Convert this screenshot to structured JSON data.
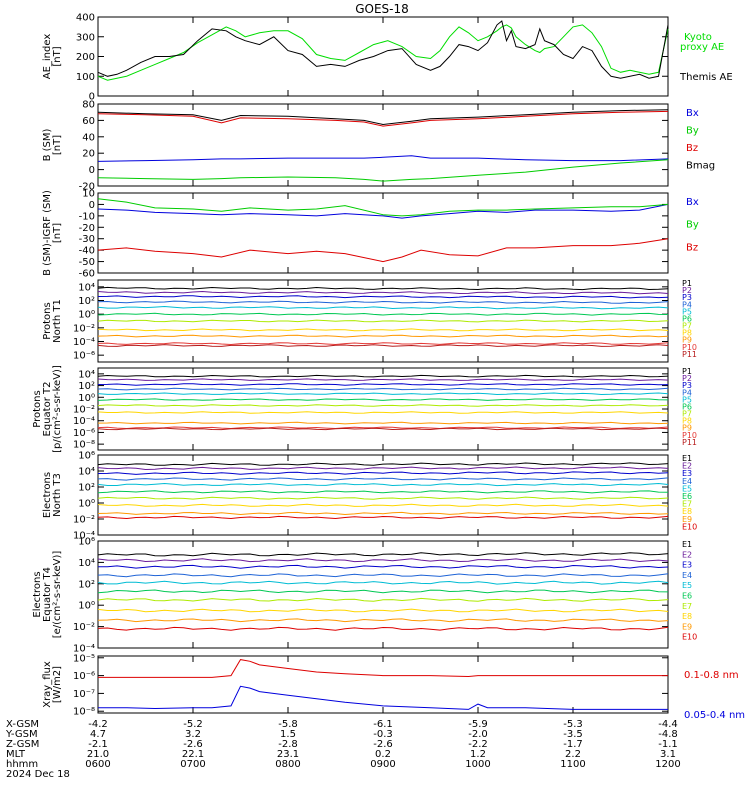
{
  "title": "GOES-18",
  "chart_data": [
    {
      "type": "line",
      "ylabel": "AE_index\n[nT]",
      "scale": "linear",
      "ylim": [
        0,
        400
      ],
      "ytick_labels": [
        "0",
        "100",
        "200",
        "300",
        "400"
      ],
      "ytick_values": [
        0,
        100,
        200,
        300,
        400
      ],
      "x": [
        6.0,
        6.1,
        6.2,
        6.3,
        6.45,
        6.6,
        6.75,
        6.9,
        7.05,
        7.2,
        7.35,
        7.45,
        7.55,
        7.7,
        7.85,
        8.0,
        8.15,
        8.3,
        8.45,
        8.6,
        8.75,
        8.9,
        9.05,
        9.2,
        9.35,
        9.5,
        9.6,
        9.7,
        9.8,
        9.9,
        10.0,
        10.1,
        10.2,
        10.25,
        10.3,
        10.35,
        10.4,
        10.5,
        10.6,
        10.65,
        10.7,
        10.8,
        10.9,
        11.0,
        11.1,
        11.2,
        11.3,
        11.4,
        11.5,
        11.6,
        11.7,
        11.8,
        11.9,
        12.0
      ],
      "series": [
        {
          "name": "Kyoto proxy AE",
          "color": "#00dd00",
          "legend_position": "top",
          "values": [
            100,
            80,
            90,
            100,
            130,
            160,
            190,
            220,
            270,
            310,
            350,
            330,
            300,
            320,
            330,
            330,
            290,
            210,
            190,
            180,
            220,
            260,
            280,
            250,
            200,
            190,
            230,
            300,
            350,
            320,
            280,
            300,
            330,
            350,
            360,
            345,
            300,
            260,
            230,
            220,
            240,
            250,
            300,
            350,
            360,
            320,
            250,
            140,
            120,
            130,
            120,
            110,
            120,
            340
          ]
        },
        {
          "name": "Themis AE",
          "color": "#000000",
          "legend_position": "middle",
          "values": [
            120,
            100,
            110,
            130,
            170,
            200,
            200,
            210,
            280,
            340,
            330,
            300,
            280,
            260,
            300,
            230,
            210,
            150,
            160,
            150,
            180,
            200,
            230,
            240,
            160,
            130,
            150,
            200,
            260,
            250,
            230,
            270,
            360,
            380,
            280,
            330,
            250,
            240,
            260,
            340,
            280,
            260,
            210,
            190,
            250,
            230,
            150,
            100,
            90,
            100,
            110,
            90,
            100,
            360
          ]
        }
      ]
    },
    {
      "type": "line",
      "ylabel": "B (SM)\n[nT]",
      "scale": "linear",
      "ylim": [
        -20,
        80
      ],
      "ytick_labels": [
        "-20",
        "0",
        "20",
        "40",
        "60",
        "80"
      ],
      "ytick_values": [
        -20,
        0,
        20,
        40,
        60,
        80
      ],
      "x": [
        6.0,
        6.5,
        7.0,
        7.3,
        7.5,
        8.0,
        8.5,
        8.8,
        9.0,
        9.3,
        9.5,
        10.0,
        10.5,
        11.0,
        11.5,
        12.0
      ],
      "series": [
        {
          "name": "Bx",
          "color": "#0000dd",
          "values": [
            10,
            11,
            12,
            13,
            13,
            14,
            14,
            14,
            15,
            17,
            14,
            14,
            12,
            11,
            11,
            13
          ]
        },
        {
          "name": "By",
          "color": "#00cc00",
          "values": [
            -10,
            -11,
            -12,
            -11,
            -10,
            -9,
            -10,
            -12,
            -14,
            -12,
            -11,
            -7,
            -3,
            3,
            8,
            12
          ]
        },
        {
          "name": "Bz",
          "color": "#dd0000",
          "values": [
            68,
            67,
            65,
            57,
            63,
            62,
            60,
            58,
            53,
            57,
            60,
            62,
            65,
            68,
            70,
            71
          ]
        },
        {
          "name": "Bmag",
          "color": "#000000",
          "values": [
            70,
            68,
            67,
            60,
            66,
            65,
            62,
            60,
            55,
            59,
            62,
            64,
            67,
            70,
            72,
            73
          ]
        }
      ]
    },
    {
      "type": "line",
      "ylabel": "B (SM)-IGRF (SM)\n[nT]",
      "scale": "linear",
      "ylim": [
        -60,
        10
      ],
      "ytick_labels": [
        "-60",
        "-50",
        "-40",
        "-30",
        "-20",
        "-10",
        "0",
        "10"
      ],
      "ytick_values": [
        -60,
        -50,
        -40,
        -30,
        -20,
        -10,
        0,
        10
      ],
      "x": [
        6.0,
        6.3,
        6.6,
        7.0,
        7.3,
        7.6,
        8.0,
        8.3,
        8.6,
        9.0,
        9.2,
        9.4,
        9.7,
        10.0,
        10.3,
        10.6,
        11.0,
        11.4,
        11.7,
        12.0
      ],
      "series": [
        {
          "name": "Bx",
          "color": "#0000dd",
          "values": [
            -4,
            -5,
            -7,
            -8,
            -9,
            -8,
            -9,
            -10,
            -8,
            -10,
            -12,
            -10,
            -8,
            -6,
            -7,
            -5,
            -5,
            -6,
            -5,
            0
          ]
        },
        {
          "name": "By",
          "color": "#00cc00",
          "values": [
            5,
            2,
            -3,
            -4,
            -6,
            -3,
            -5,
            -4,
            -1,
            -9,
            -10,
            -9,
            -6,
            -5,
            -5,
            -4,
            -3,
            -2,
            -2,
            0
          ]
        },
        {
          "name": "Bz",
          "color": "#dd0000",
          "values": [
            -40,
            -38,
            -41,
            -43,
            -46,
            -40,
            -43,
            -41,
            -43,
            -50,
            -46,
            -40,
            -44,
            -45,
            -38,
            -38,
            -36,
            -36,
            -34,
            -30
          ]
        }
      ]
    },
    {
      "type": "line",
      "ylabel": "Protons\nNorth T1",
      "scale": "log",
      "ylim": [
        -7,
        5
      ],
      "ytick_labels": [
        "10⁴",
        "10²",
        "10⁰",
        "10⁻²",
        "10⁻⁴",
        "10⁻⁶"
      ],
      "ytick_values": [
        4,
        2,
        0,
        -2,
        -4,
        -6
      ],
      "x": [
        6.0,
        12.0
      ],
      "series": [
        {
          "name": "P1",
          "color": "#000000",
          "values": [
            3.8,
            3.7
          ]
        },
        {
          "name": "P2",
          "color": "#6a1b9a",
          "values": [
            3.2,
            3.1
          ]
        },
        {
          "name": "P3",
          "color": "#0000cc",
          "values": [
            2.6,
            2.5
          ]
        },
        {
          "name": "P4",
          "color": "#1e63d6",
          "values": [
            1.8,
            1.7
          ]
        },
        {
          "name": "P5",
          "color": "#00bcd4",
          "values": [
            1.0,
            0.9
          ]
        },
        {
          "name": "P6",
          "color": "#00c853",
          "values": [
            0.0,
            0.0
          ]
        },
        {
          "name": "P7",
          "color": "#aeea00",
          "values": [
            -1.0,
            -1.0
          ]
        },
        {
          "name": "P8",
          "color": "#ffd600",
          "values": [
            -2.3,
            -2.3
          ]
        },
        {
          "name": "P9",
          "color": "#ff9800",
          "values": [
            -3.2,
            -3.2
          ]
        },
        {
          "name": "P10",
          "color": "#e53935",
          "values": [
            -4.3,
            -4.3
          ]
        },
        {
          "name": "P11",
          "color": "#b71c1c",
          "values": [
            -4.6,
            -4.6
          ]
        }
      ]
    },
    {
      "type": "line",
      "ylabel": "Protons\nEquator T2\n[p/(cm²-s-sr-keV)]",
      "scale": "log",
      "ylim": [
        -9,
        5
      ],
      "ytick_labels": [
        "10⁴",
        "10²",
        "10⁰",
        "10⁻²",
        "10⁻⁴",
        "10⁻⁶",
        "10⁻⁸"
      ],
      "ytick_values": [
        4,
        2,
        0,
        -2,
        -4,
        -6,
        -8
      ],
      "x": [
        6.0,
        12.0
      ],
      "series": [
        {
          "name": "P1",
          "color": "#000000",
          "values": [
            3.6,
            3.6
          ]
        },
        {
          "name": "P2",
          "color": "#6a1b9a",
          "values": [
            3.0,
            3.0
          ]
        },
        {
          "name": "P3",
          "color": "#0000cc",
          "values": [
            2.2,
            2.2
          ]
        },
        {
          "name": "P4",
          "color": "#1e63d6",
          "values": [
            1.4,
            1.4
          ]
        },
        {
          "name": "P5",
          "color": "#00bcd4",
          "values": [
            0.6,
            0.6
          ]
        },
        {
          "name": "P6",
          "color": "#00c853",
          "values": [
            -0.4,
            -0.4
          ]
        },
        {
          "name": "P7",
          "color": "#aeea00",
          "values": [
            -1.4,
            -1.4
          ]
        },
        {
          "name": "P8",
          "color": "#ffd600",
          "values": [
            -2.6,
            -2.6
          ]
        },
        {
          "name": "P9",
          "color": "#ff9800",
          "values": [
            -4.4,
            -4.4
          ]
        },
        {
          "name": "P10",
          "color": "#e53935",
          "values": [
            -5.2,
            -5.2
          ]
        },
        {
          "name": "P11",
          "color": "#b71c1c",
          "values": [
            -5.4,
            -5.4
          ]
        }
      ]
    },
    {
      "type": "line",
      "ylabel": "Electrons\nNorth T3",
      "scale": "log",
      "ylim": [
        -4,
        6
      ],
      "ytick_labels": [
        "10⁶",
        "10⁴",
        "10²",
        "10⁰",
        "10⁻²",
        "10⁻⁴"
      ],
      "ytick_values": [
        6,
        4,
        2,
        0,
        -2,
        -4
      ],
      "x": [
        6.0,
        12.0
      ],
      "series": [
        {
          "name": "E1",
          "color": "#000000",
          "values": [
            4.8,
            4.9
          ]
        },
        {
          "name": "E2",
          "color": "#6a1b9a",
          "values": [
            4.3,
            4.4
          ]
        },
        {
          "name": "E3",
          "color": "#0000cc",
          "values": [
            3.7,
            3.8
          ]
        },
        {
          "name": "E4",
          "color": "#1e63d6",
          "values": [
            3.0,
            3.0
          ]
        },
        {
          "name": "E5",
          "color": "#00bcd4",
          "values": [
            2.3,
            2.3
          ]
        },
        {
          "name": "E6",
          "color": "#00c853",
          "values": [
            1.4,
            1.4
          ]
        },
        {
          "name": "E7",
          "color": "#aeea00",
          "values": [
            0.6,
            0.6
          ]
        },
        {
          "name": "E8",
          "color": "#ffd600",
          "values": [
            -0.3,
            -0.3
          ]
        },
        {
          "name": "E9",
          "color": "#ff9800",
          "values": [
            -1.3,
            -1.3
          ]
        },
        {
          "name": "E10",
          "color": "#dd0000",
          "values": [
            -1.8,
            -1.8
          ]
        }
      ]
    },
    {
      "type": "line",
      "ylabel": "Electrons\nEquator T4\n[e/(cm²-s-sr-keV)]",
      "scale": "log",
      "ylim": [
        -4,
        6
      ],
      "ytick_labels": [
        "10⁶",
        "10⁴",
        "10²",
        "10⁰",
        "10⁻²",
        "10⁻⁴"
      ],
      "ytick_values": [
        6,
        4,
        2,
        0,
        -2,
        -4
      ],
      "x": [
        6.0,
        12.0
      ],
      "series": [
        {
          "name": "E1",
          "color": "#000000",
          "values": [
            4.7,
            4.8
          ]
        },
        {
          "name": "E2",
          "color": "#6a1b9a",
          "values": [
            4.2,
            4.2
          ]
        },
        {
          "name": "E3",
          "color": "#0000cc",
          "values": [
            3.6,
            3.6
          ]
        },
        {
          "name": "E4",
          "color": "#1e63d6",
          "values": [
            2.8,
            2.8
          ]
        },
        {
          "name": "E5",
          "color": "#00bcd4",
          "values": [
            2.1,
            2.1
          ]
        },
        {
          "name": "E6",
          "color": "#00c853",
          "values": [
            1.3,
            1.3
          ]
        },
        {
          "name": "E7",
          "color": "#aeea00",
          "values": [
            0.5,
            0.5
          ]
        },
        {
          "name": "E8",
          "color": "#ffd600",
          "values": [
            -0.5,
            -0.5
          ]
        },
        {
          "name": "E9",
          "color": "#ff9800",
          "values": [
            -1.4,
            -1.4
          ]
        },
        {
          "name": "E10",
          "color": "#dd0000",
          "values": [
            -2.2,
            -2.2
          ]
        }
      ]
    },
    {
      "type": "line",
      "ylabel": "Xray_flux\n[W/m2]",
      "scale": "log",
      "ylim": [
        -8.1,
        -4.9
      ],
      "ytick_labels": [
        "10⁻⁵",
        "10⁻⁶",
        "10⁻⁷",
        "10⁻⁸"
      ],
      "ytick_values": [
        -5,
        -6,
        -7,
        -8
      ],
      "x": [
        6.0,
        6.3,
        6.6,
        7.0,
        7.2,
        7.4,
        7.5,
        7.6,
        7.7,
        8.0,
        8.3,
        8.6,
        9.0,
        9.5,
        9.9,
        10.0,
        10.1,
        10.5,
        11.0,
        11.5,
        12.0
      ],
      "series": [
        {
          "name": "0.1-0.8 nm",
          "color": "#dd0000",
          "values": [
            -6.1,
            -6.1,
            -6.1,
            -6.1,
            -6.1,
            -6.0,
            -5.1,
            -5.2,
            -5.4,
            -5.6,
            -5.8,
            -5.9,
            -6.0,
            -6.0,
            -6.05,
            -6.0,
            -6.0,
            -6.0,
            -6.0,
            -6.0,
            -6.0
          ]
        },
        {
          "name": "0.05-0.4 nm",
          "color": "#0000dd",
          "values": [
            -7.8,
            -7.8,
            -7.85,
            -7.8,
            -7.8,
            -7.7,
            -6.6,
            -6.7,
            -6.9,
            -7.1,
            -7.3,
            -7.5,
            -7.7,
            -7.8,
            -7.9,
            -7.6,
            -7.8,
            -7.8,
            -7.9,
            -7.9,
            -7.9
          ]
        }
      ]
    }
  ],
  "xaxis": {
    "row_labels": [
      "X-GSM",
      "Y-GSM",
      "Z-GSM",
      "MLT",
      "hhmm"
    ],
    "tick_values": [
      6,
      7,
      8,
      9,
      10,
      11,
      12
    ],
    "columns": [
      [
        "-4.2",
        "4.7",
        "-2.1",
        "21.0",
        "0600"
      ],
      [
        "-5.2",
        "3.2",
        "-2.6",
        "22.1",
        "0700"
      ],
      [
        "-5.8",
        "1.5",
        "-2.8",
        "23.1",
        "0800"
      ],
      [
        "-6.1",
        "-0.3",
        "-2.6",
        "0.2",
        "0900"
      ],
      [
        "-5.9",
        "-2.0",
        "-2.2",
        "1.2",
        "1000"
      ],
      [
        "-5.3",
        "-3.5",
        "-1.7",
        "2.2",
        "1100"
      ],
      [
        "-4.4",
        "-4.8",
        "-1.1",
        "3.1",
        "1200"
      ]
    ],
    "date_label": "2024 Dec 18"
  }
}
